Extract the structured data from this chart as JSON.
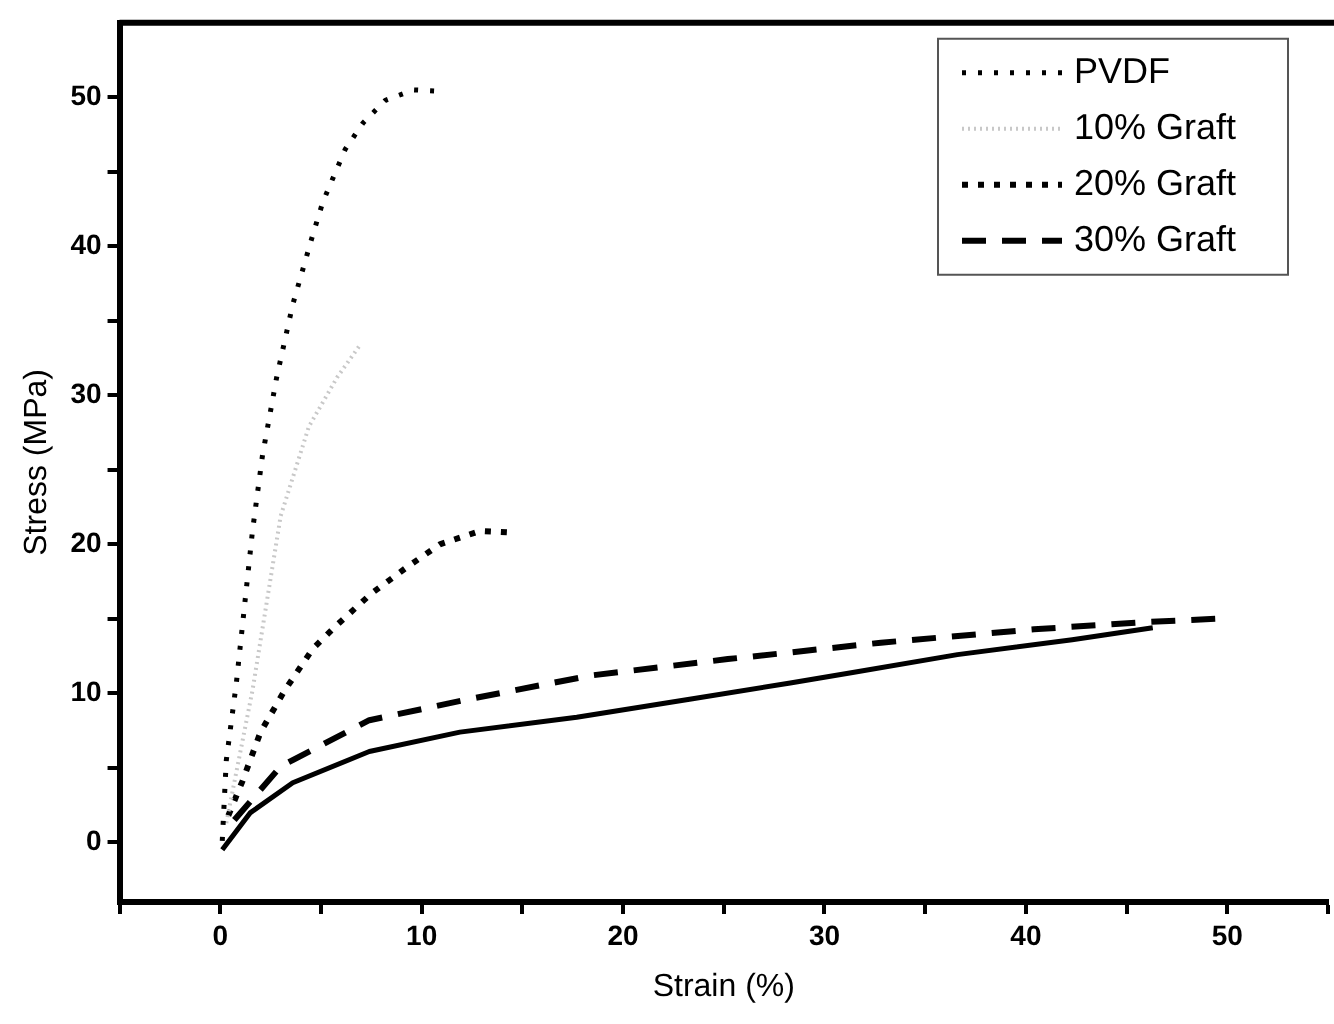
{
  "chart_data": {
    "type": "line",
    "xlabel": "Strain (%)",
    "ylabel": "Stress (MPa)",
    "xlim": [
      -5,
      55
    ],
    "ylim": [
      -4,
      55
    ],
    "xticks": [
      {
        "value": -5,
        "label": null
      },
      0,
      {
        "value": 5,
        "label": null
      },
      10,
      {
        "value": 15,
        "label": null
      },
      20,
      {
        "value": 25,
        "label": null
      },
      30,
      {
        "value": 35,
        "label": null
      },
      40,
      {
        "value": 45,
        "label": null
      },
      50,
      {
        "value": 55,
        "label": null
      }
    ],
    "yticks": [
      0,
      {
        "value": 5,
        "label": null
      },
      10,
      {
        "value": 15,
        "label": null
      },
      20,
      {
        "value": 25,
        "label": null
      },
      30,
      {
        "value": 35,
        "label": null
      },
      40,
      {
        "value": 45,
        "label": null
      },
      50
    ],
    "grid": false,
    "legend": "top right",
    "marker": "none",
    "series": [
      {
        "name": "PVDF",
        "color": "#000000",
        "line_style": "dotted",
        "x": [
          0.1,
          0.3,
          0.8,
          1.2,
          1.6,
          2.1,
          2.8,
          3.6,
          4.6,
          5.1,
          6.2,
          7.1,
          8.2,
          9.6,
          11
        ],
        "values": [
          0.1,
          5.5,
          10.7,
          15.8,
          20.9,
          26,
          31.2,
          36.1,
          40.8,
          43,
          46.5,
          48.3,
          49.8,
          50.5,
          50.4
        ]
      },
      {
        "name": "10% Graft",
        "color": "#c8c8c8",
        "line_style": "dotted",
        "x": [
          0.3,
          1.6,
          3,
          4.4,
          5.8,
          6.9
        ],
        "values": [
          1.3,
          10.2,
          21.9,
          27.9,
          31.2,
          33.3
        ]
      },
      {
        "name": "20% Graft",
        "color": "#000000",
        "line_style": "dotted",
        "x": [
          0.4,
          1.1,
          2,
          3.2,
          4.6,
          5.8,
          7.5,
          9.2,
          10.9,
          12.9,
          14.3
        ],
        "values": [
          1.8,
          4.1,
          7.4,
          10.2,
          13,
          14.6,
          16.7,
          18.4,
          20,
          20.9,
          20.8
        ]
      },
      {
        "name": "30% Graft",
        "color": "#000000",
        "line_style": "dashed",
        "x": [
          0.7,
          3,
          7.4,
          12.3,
          18.4,
          25.2,
          32.8,
          40.4,
          46.1,
          49.4
        ],
        "values": [
          1.5,
          5.1,
          8.2,
          9.6,
          11.2,
          12.3,
          13.4,
          14.3,
          14.8,
          15
        ]
      },
      {
        "color": "#000000",
        "line_style": "solid",
        "x": [
          0.1,
          1.5,
          3.6,
          7.4,
          11.9,
          17.7,
          23.3,
          28.3,
          31.4,
          36.6,
          42.3,
          46.3
        ],
        "values": [
          -0.5,
          2,
          4,
          6.1,
          7.4,
          8.4,
          9.6,
          10.7,
          11.4,
          12.6,
          13.6,
          14.4
        ]
      }
    ]
  }
}
